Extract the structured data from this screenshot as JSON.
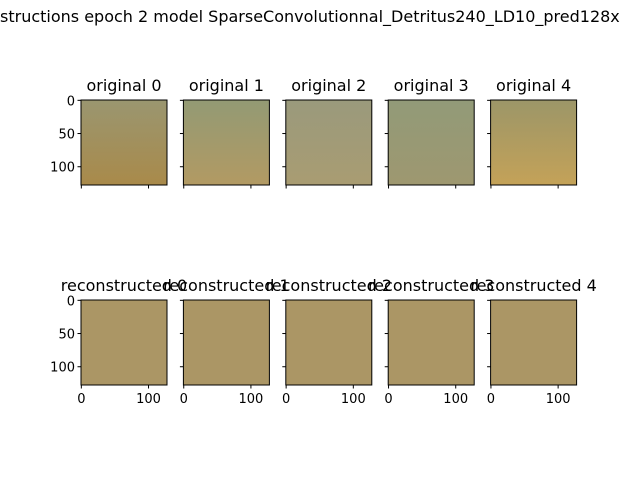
{
  "title": "structions epoch 2 model SparseConvolutionnal_Detritus240_LD10_pred128x",
  "chart_data": [
    {
      "type": "image",
      "title": "original 0",
      "colors": [
        "#9a9670",
        "#a98a4a"
      ],
      "xlim": [
        -0.5,
        127.5
      ],
      "ylim": [
        127.5,
        -0.5
      ],
      "xticks": [
        0,
        100
      ],
      "yticks": [
        0,
        50,
        100
      ],
      "xtick_labels": false,
      "ytick_labels": true
    },
    {
      "type": "image",
      "title": "original 1",
      "colors": [
        "#939a74",
        "#b29a63"
      ],
      "xlim": [
        -0.5,
        127.5
      ],
      "ylim": [
        127.5,
        -0.5
      ],
      "xticks": [
        0,
        100
      ],
      "yticks": [
        0,
        50,
        100
      ],
      "xtick_labels": false,
      "ytick_labels": false
    },
    {
      "type": "image",
      "title": "original 2",
      "colors": [
        "#9a9a7c",
        "#a99c72"
      ],
      "xlim": [
        -0.5,
        127.5
      ],
      "ylim": [
        127.5,
        -0.5
      ],
      "xticks": [
        0,
        100
      ],
      "yticks": [
        0,
        50,
        100
      ],
      "xtick_labels": false,
      "ytick_labels": false
    },
    {
      "type": "image",
      "title": "original 3",
      "colors": [
        "#929a78",
        "#9e9870"
      ],
      "xlim": [
        -0.5,
        127.5
      ],
      "ylim": [
        127.5,
        -0.5
      ],
      "xticks": [
        0,
        100
      ],
      "yticks": [
        0,
        50,
        100
      ],
      "xtick_labels": false,
      "ytick_labels": false
    },
    {
      "type": "image",
      "title": "original 4",
      "colors": [
        "#9c9668",
        "#c4a258"
      ],
      "xlim": [
        -0.5,
        127.5
      ],
      "ylim": [
        127.5,
        -0.5
      ],
      "xticks": [
        0,
        100
      ],
      "yticks": [
        0,
        50,
        100
      ],
      "xtick_labels": false,
      "ytick_labels": false
    },
    {
      "type": "image",
      "title": "reconstructed 0",
      "colors": [
        "#ab9665",
        "#ab9665"
      ],
      "xlim": [
        -0.5,
        127.5
      ],
      "ylim": [
        127.5,
        -0.5
      ],
      "xticks": [
        0,
        100
      ],
      "yticks": [
        0,
        50,
        100
      ],
      "xtick_labels": true,
      "ytick_labels": true
    },
    {
      "type": "image",
      "title": "reconstructed 1",
      "colors": [
        "#ab9665",
        "#ab9665"
      ],
      "xlim": [
        -0.5,
        127.5
      ],
      "ylim": [
        127.5,
        -0.5
      ],
      "xticks": [
        0,
        100
      ],
      "yticks": [
        0,
        50,
        100
      ],
      "xtick_labels": true,
      "ytick_labels": false
    },
    {
      "type": "image",
      "title": "reconstructed 2",
      "colors": [
        "#ab9665",
        "#ab9665"
      ],
      "xlim": [
        -0.5,
        127.5
      ],
      "ylim": [
        127.5,
        -0.5
      ],
      "xticks": [
        0,
        100
      ],
      "yticks": [
        0,
        50,
        100
      ],
      "xtick_labels": true,
      "ytick_labels": false
    },
    {
      "type": "image",
      "title": "reconstructed 3",
      "colors": [
        "#ab9665",
        "#ab9665"
      ],
      "xlim": [
        -0.5,
        127.5
      ],
      "ylim": [
        127.5,
        -0.5
      ],
      "xticks": [
        0,
        100
      ],
      "yticks": [
        0,
        50,
        100
      ],
      "xtick_labels": true,
      "ytick_labels": false
    },
    {
      "type": "image",
      "title": "reconstructed 4",
      "colors": [
        "#ab9665",
        "#ab9665"
      ],
      "xlim": [
        -0.5,
        127.5
      ],
      "ylim": [
        127.5,
        -0.5
      ],
      "xticks": [
        0,
        100
      ],
      "yticks": [
        0,
        50,
        100
      ],
      "xtick_labels": true,
      "ytick_labels": false
    }
  ]
}
